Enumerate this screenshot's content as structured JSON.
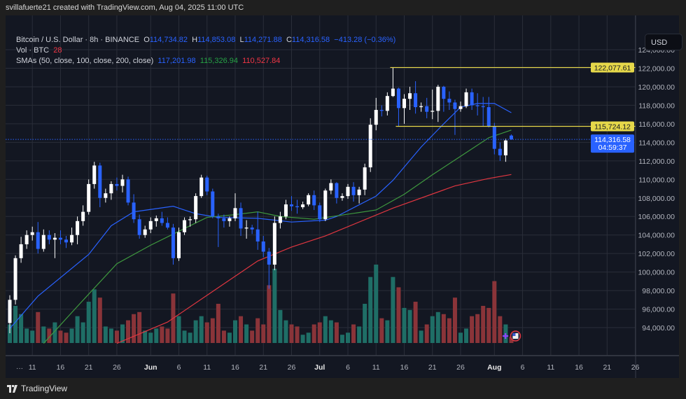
{
  "header": {
    "attribution": "svillafuerte21 created with TradingView.com, Aug 04, 2025 11:00 UTC"
  },
  "legend": {
    "symbol": "Bitcoin / U.S. Dollar · 8h · BINANCE",
    "o_label": "O",
    "o": "114,734.82",
    "h_label": "H",
    "h": "114,853.08",
    "l_label": "L",
    "l": "114,271.88",
    "c_label": "C",
    "c": "114,316.58",
    "change": "−413.28 (−0.36%)",
    "vol_label": "Vol · BTC",
    "vol": "28",
    "sma_label": "SMAs (50, close, 100, close, 200, close)",
    "sma50": "117,201.98",
    "sma100": "115,326.94",
    "sma200": "110,527.84"
  },
  "axis": {
    "currency": "USD",
    "more": "···"
  },
  "footer": {
    "brand": "TradingView",
    "logo": "tradingview-logo"
  },
  "colors": {
    "up": "#ffffff",
    "down": "#2962ff",
    "vol_up": "#1f6e66",
    "vol_down": "#8a3439",
    "sma50": "#2962ff",
    "sma100": "#3f9a3f",
    "sma200": "#e03640",
    "hline": "#e6d84a",
    "last": "#2962ff",
    "bg": "#131722",
    "grid": "#2a2e39"
  },
  "chart_data": {
    "type": "candlestick",
    "title": "Bitcoin / U.S. Dollar · 8h · BINANCE",
    "ylim": [
      92000,
      125500
    ],
    "y_ticks": [
      "124,000.00",
      "122,000.00",
      "120,000.00",
      "118,000.00",
      "116,000.00",
      "114,000.00",
      "112,000.00",
      "110,000.00",
      "108,000.00",
      "106,000.00",
      "104,000.00",
      "102,000.00",
      "100,000.00",
      "98,000.00",
      "96,000.00",
      "94,000.00"
    ],
    "y_tick_values": [
      124000,
      122000,
      120000,
      118000,
      116000,
      114000,
      112000,
      110000,
      108000,
      106000,
      104000,
      102000,
      100000,
      98000,
      96000,
      94000
    ],
    "x_ticks": [
      [
        "11",
        "2025-05-11",
        false
      ],
      [
        "16",
        "2025-05-16",
        false
      ],
      [
        "21",
        "2025-05-21",
        false
      ],
      [
        "26",
        "2025-05-26",
        false
      ],
      [
        "Jun",
        "2025-06-01",
        true
      ],
      [
        "6",
        "2025-06-06",
        false
      ],
      [
        "11",
        "2025-06-11",
        false
      ],
      [
        "16",
        "2025-06-16",
        false
      ],
      [
        "21",
        "2025-06-21",
        false
      ],
      [
        "26",
        "2025-06-26",
        false
      ],
      [
        "Jul",
        "2025-07-01",
        true
      ],
      [
        "6",
        "2025-07-06",
        false
      ],
      [
        "11",
        "2025-07-11",
        false
      ],
      [
        "16",
        "2025-07-16",
        false
      ],
      [
        "21",
        "2025-07-21",
        false
      ],
      [
        "26",
        "2025-07-26",
        false
      ],
      [
        "Aug",
        "2025-08-01",
        true
      ],
      [
        "6",
        "2025-08-06",
        false
      ],
      [
        "11",
        "2025-08-11",
        false
      ],
      [
        "16",
        "2025-08-16",
        false
      ],
      [
        "21",
        "2025-08-21",
        false
      ],
      [
        "26",
        "2025-08-26",
        false
      ]
    ],
    "grid": true,
    "candles_columns": [
      "date",
      "open",
      "high",
      "low",
      "close",
      "volume"
    ],
    "candles": [
      [
        "2025-05-07",
        94500,
        97500,
        93400,
        97000,
        900
      ],
      [
        "2025-05-08",
        97000,
        101800,
        96500,
        101500,
        1800
      ],
      [
        "2025-05-09",
        101500,
        103800,
        101000,
        103000,
        1400
      ],
      [
        "2025-05-10",
        103000,
        104500,
        102500,
        104000,
        700
      ],
      [
        "2025-05-11",
        104000,
        104900,
        103400,
        104300,
        600
      ],
      [
        "2025-05-12",
        104300,
        105400,
        102000,
        102500,
        1500
      ],
      [
        "2025-05-13",
        102500,
        104600,
        102200,
        104000,
        800
      ],
      [
        "2025-05-14",
        104000,
        104500,
        103000,
        103500,
        700
      ],
      [
        "2025-05-15",
        103500,
        104200,
        101500,
        103700,
        1000
      ],
      [
        "2025-05-16",
        103700,
        104500,
        103000,
        103500,
        600
      ],
      [
        "2025-05-17",
        103500,
        103900,
        102600,
        103200,
        500
      ],
      [
        "2025-05-18",
        103200,
        104800,
        102900,
        104000,
        700
      ],
      [
        "2025-05-19",
        104000,
        106000,
        103000,
        105500,
        1300
      ],
      [
        "2025-05-20",
        105500,
        107200,
        105000,
        106500,
        1000
      ],
      [
        "2025-05-21",
        106500,
        110000,
        106200,
        109500,
        2000
      ],
      [
        "2025-05-22",
        109500,
        111900,
        109000,
        111500,
        2600
      ],
      [
        "2025-05-23",
        111500,
        111800,
        107000,
        108000,
        2200
      ],
      [
        "2025-05-24",
        108000,
        109000,
        107500,
        108500,
        800
      ],
      [
        "2025-05-25",
        108500,
        109800,
        107800,
        109500,
        700
      ],
      [
        "2025-05-26",
        109500,
        110200,
        108800,
        109300,
        600
      ],
      [
        "2025-05-27",
        109300,
        110500,
        108600,
        110000,
        900
      ],
      [
        "2025-05-28",
        110000,
        110300,
        107200,
        107500,
        1100
      ],
      [
        "2025-05-29",
        107500,
        108400,
        105300,
        105700,
        1400
      ],
      [
        "2025-05-30",
        105700,
        106200,
        103600,
        104000,
        1500
      ],
      [
        "2025-05-31",
        104000,
        105000,
        103700,
        104600,
        600
      ],
      [
        "2025-06-01",
        104600,
        105900,
        104200,
        105500,
        500
      ],
      [
        "2025-06-02",
        105500,
        106100,
        104900,
        105800,
        700
      ],
      [
        "2025-06-03",
        105800,
        106500,
        105000,
        105300,
        800
      ],
      [
        "2025-06-04",
        105300,
        105900,
        104600,
        104800,
        700
      ],
      [
        "2025-06-05",
        104800,
        105200,
        100800,
        101500,
        2400
      ],
      [
        "2025-06-06",
        101500,
        104800,
        101200,
        104300,
        1300
      ],
      [
        "2025-06-07",
        104300,
        105900,
        104000,
        105600,
        600
      ],
      [
        "2025-06-08",
        105600,
        106000,
        104900,
        105700,
        500
      ],
      [
        "2025-06-09",
        105700,
        108500,
        105300,
        108200,
        1100
      ],
      [
        "2025-06-10",
        108200,
        110500,
        108000,
        110200,
        1300
      ],
      [
        "2025-06-11",
        110200,
        110400,
        108300,
        108700,
        1000
      ],
      [
        "2025-06-12",
        108700,
        109000,
        105800,
        106000,
        1200
      ],
      [
        "2025-06-13",
        106000,
        106300,
        102700,
        105800,
        1900
      ],
      [
        "2025-06-14",
        105800,
        106200,
        104800,
        105500,
        600
      ],
      [
        "2025-06-15",
        105500,
        106000,
        104900,
        105800,
        500
      ],
      [
        "2025-06-16",
        105800,
        108500,
        105500,
        106900,
        1100
      ],
      [
        "2025-06-17",
        106900,
        107500,
        103900,
        104700,
        1300
      ],
      [
        "2025-06-18",
        104700,
        105600,
        103600,
        104800,
        900
      ],
      [
        "2025-06-19",
        104800,
        105100,
        104100,
        104600,
        600
      ],
      [
        "2025-06-20",
        104600,
        106500,
        102400,
        103300,
        1200
      ],
      [
        "2025-06-21",
        103300,
        103900,
        101600,
        102200,
        900
      ],
      [
        "2025-06-22",
        102200,
        102600,
        98200,
        100800,
        2800
      ],
      [
        "2025-06-23",
        100800,
        106000,
        100200,
        105300,
        3600
      ],
      [
        "2025-06-24",
        105300,
        106500,
        104700,
        106000,
        1600
      ],
      [
        "2025-06-25",
        106000,
        107800,
        105700,
        107300,
        1100
      ],
      [
        "2025-06-26",
        107300,
        108200,
        106600,
        107100,
        900
      ],
      [
        "2025-06-27",
        107100,
        107800,
        106300,
        107000,
        800
      ],
      [
        "2025-06-28",
        107000,
        107600,
        106800,
        107300,
        400
      ],
      [
        "2025-06-29",
        107300,
        108500,
        107100,
        108300,
        500
      ],
      [
        "2025-06-30",
        108300,
        108800,
        106700,
        107200,
        900
      ],
      [
        "2025-07-01",
        107200,
        107500,
        105400,
        105700,
        1000
      ],
      [
        "2025-07-02",
        105700,
        109000,
        105500,
        108800,
        1300
      ],
      [
        "2025-07-03",
        108800,
        110000,
        108400,
        109600,
        1100
      ],
      [
        "2025-07-04",
        109600,
        109700,
        107400,
        108000,
        1000
      ],
      [
        "2025-07-05",
        108000,
        108500,
        107700,
        108200,
        400
      ],
      [
        "2025-07-06",
        108200,
        109500,
        107900,
        109200,
        500
      ],
      [
        "2025-07-07",
        109200,
        109700,
        107600,
        108300,
        900
      ],
      [
        "2025-07-08",
        108300,
        109200,
        107400,
        108900,
        800
      ],
      [
        "2025-07-09",
        108900,
        111700,
        108300,
        111300,
        1900
      ],
      [
        "2025-07-10",
        111300,
        116600,
        110800,
        115900,
        3200
      ],
      [
        "2025-07-11",
        115900,
        118800,
        115300,
        117500,
        3800
      ],
      [
        "2025-07-12",
        117500,
        118000,
        116800,
        117400,
        1200
      ],
      [
        "2025-07-13",
        117400,
        119400,
        116900,
        119000,
        1100
      ],
      [
        "2025-07-14",
        119000,
        122077.61,
        118900,
        119800,
        3200
      ],
      [
        "2025-07-15",
        119800,
        119900,
        115700,
        117700,
        2700
      ],
      [
        "2025-07-16",
        117700,
        119200,
        116000,
        118700,
        1700
      ],
      [
        "2025-07-17",
        118700,
        120000,
        117500,
        119300,
        1600
      ],
      [
        "2025-07-18",
        119300,
        120600,
        117100,
        117800,
        2000
      ],
      [
        "2025-07-19",
        117800,
        118300,
        117300,
        117900,
        600
      ],
      [
        "2025-07-20",
        117900,
        118800,
        116600,
        117300,
        900
      ],
      [
        "2025-07-21",
        117300,
        119700,
        116500,
        117400,
        1300
      ],
      [
        "2025-07-22",
        117400,
        120200,
        116200,
        120000,
        1500
      ],
      [
        "2025-07-23",
        120000,
        120100,
        117300,
        118700,
        1400
      ],
      [
        "2025-07-24",
        118700,
        119500,
        117500,
        118300,
        1200
      ],
      [
        "2025-07-25",
        118300,
        118600,
        114800,
        117600,
        2200
      ],
      [
        "2025-07-26",
        117600,
        118400,
        117300,
        117900,
        500
      ],
      [
        "2025-07-27",
        117900,
        119800,
        117700,
        119400,
        700
      ],
      [
        "2025-07-28",
        119400,
        119800,
        117500,
        118000,
        1300
      ],
      [
        "2025-07-29",
        118000,
        119300,
        116900,
        117900,
        1400
      ],
      [
        "2025-07-30",
        117900,
        118900,
        115700,
        117800,
        1800
      ],
      [
        "2025-07-31",
        117800,
        118900,
        115600,
        115700,
        1700
      ],
      [
        "2025-08-01",
        115700,
        116100,
        112700,
        113300,
        3000
      ],
      [
        "2025-08-02",
        113300,
        114000,
        112000,
        112600,
        1300
      ],
      [
        "2025-08-03",
        112600,
        114400,
        111900,
        114200,
        900
      ],
      [
        "2025-08-04",
        114734.82,
        114853.08,
        114271.88,
        114316.58,
        300
      ]
    ],
    "sma": [
      {
        "name": "SMA 50",
        "color": "#2962ff",
        "points": [
          [
            "2025-05-07",
            93900
          ],
          [
            "2025-05-12",
            97400
          ],
          [
            "2025-05-21",
            101900
          ],
          [
            "2025-05-25",
            105000
          ],
          [
            "2025-05-29",
            106500
          ],
          [
            "2025-06-05",
            107100
          ],
          [
            "2025-06-09",
            106300
          ],
          [
            "2025-06-13",
            105900
          ],
          [
            "2025-06-20",
            105800
          ],
          [
            "2025-06-26",
            105400
          ],
          [
            "2025-07-02",
            105600
          ],
          [
            "2025-07-04",
            106000
          ],
          [
            "2025-07-11",
            108200
          ],
          [
            "2025-07-14",
            109900
          ],
          [
            "2025-07-19",
            113500
          ],
          [
            "2025-07-23",
            116000
          ],
          [
            "2025-07-26",
            117800
          ],
          [
            "2025-07-29",
            118200
          ],
          [
            "2025-08-01",
            118200
          ],
          [
            "2025-08-04",
            117201.98
          ]
        ]
      },
      {
        "name": "SMA 100",
        "color": "#3f9a3f",
        "points": [
          [
            "2025-05-13",
            92300
          ],
          [
            "2025-05-19",
            96300
          ],
          [
            "2025-05-26",
            100900
          ],
          [
            "2025-06-01",
            102900
          ],
          [
            "2025-06-07",
            104700
          ],
          [
            "2025-06-11",
            105900
          ],
          [
            "2025-06-16",
            106200
          ],
          [
            "2025-06-20",
            106500
          ],
          [
            "2025-06-24",
            106000
          ],
          [
            "2025-06-30",
            105700
          ],
          [
            "2025-07-11",
            106700
          ],
          [
            "2025-07-16",
            108400
          ],
          [
            "2025-07-21",
            110500
          ],
          [
            "2025-07-26",
            112500
          ],
          [
            "2025-07-31",
            114500
          ],
          [
            "2025-08-04",
            115326.94
          ]
        ]
      },
      {
        "name": "SMA 200",
        "color": "#e03640",
        "points": [
          [
            "2025-05-26",
            92300
          ],
          [
            "2025-06-04",
            94600
          ],
          [
            "2025-06-12",
            97900
          ],
          [
            "2025-06-20",
            101200
          ],
          [
            "2025-06-26",
            102700
          ],
          [
            "2025-07-02",
            103900
          ],
          [
            "2025-07-04",
            104400
          ],
          [
            "2025-07-14",
            106900
          ],
          [
            "2025-07-25",
            109300
          ],
          [
            "2025-07-31",
            110100
          ],
          [
            "2025-08-04",
            110527.84
          ]
        ]
      }
    ],
    "horizontal_lines": [
      {
        "value": 122077.61,
        "label": "122,077.61",
        "from": "2025-07-14"
      },
      {
        "value": 115724.12,
        "label": "115,724.12",
        "from": "2025-07-15"
      }
    ],
    "last_price": {
      "value": 114316.58,
      "label": "114,316.58",
      "countdown": "04:59:37"
    }
  }
}
